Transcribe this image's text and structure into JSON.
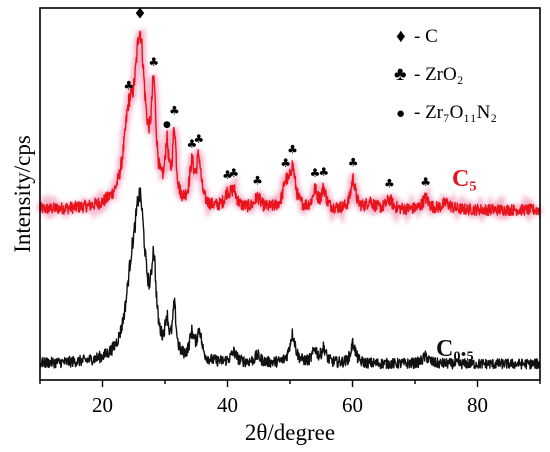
{
  "chart_data": {
    "type": "line",
    "xlabel": "2θ/degree",
    "ylabel": "Intensity/cps",
    "xlim": [
      10,
      90
    ],
    "x_ticks": [
      20,
      40,
      60,
      80
    ],
    "y_ticks_shown": false,
    "grid": false,
    "legend": {
      "placement": "top-right",
      "entries": [
        {
          "marker": "♦",
          "label": "- C"
        },
        {
          "marker": "♣",
          "label": "- ZrO₂"
        },
        {
          "marker": "●",
          "label": "- Zr₇O₁₁N₂"
        }
      ]
    },
    "series": [
      {
        "name": "C₅",
        "color": "#e8141c",
        "peaks": [
          {
            "x": 24.2,
            "h": 0.44,
            "w": 1.0
          },
          {
            "x": 26.0,
            "h": 1.0,
            "w": 1.0
          },
          {
            "x": 28.2,
            "h": 0.62,
            "w": 0.45
          },
          {
            "x": 30.3,
            "h": 0.32,
            "w": 0.35
          },
          {
            "x": 31.5,
            "h": 0.44,
            "w": 0.35
          },
          {
            "x": 34.3,
            "h": 0.24,
            "w": 0.45
          },
          {
            "x": 35.4,
            "h": 0.29,
            "w": 0.45
          },
          {
            "x": 40.0,
            "h": 0.08,
            "w": 0.55
          },
          {
            "x": 41.0,
            "h": 0.1,
            "w": 0.55
          },
          {
            "x": 44.8,
            "h": 0.07,
            "w": 0.55
          },
          {
            "x": 49.3,
            "h": 0.14,
            "w": 0.5
          },
          {
            "x": 50.4,
            "h": 0.25,
            "w": 0.55
          },
          {
            "x": 54.0,
            "h": 0.11,
            "w": 0.45
          },
          {
            "x": 55.4,
            "h": 0.12,
            "w": 0.45
          },
          {
            "x": 60.1,
            "h": 0.19,
            "w": 0.45
          },
          {
            "x": 62.8,
            "h": 0.05,
            "w": 0.6
          },
          {
            "x": 65.9,
            "h": 0.06,
            "w": 0.6
          },
          {
            "x": 71.7,
            "h": 0.07,
            "w": 0.6
          },
          {
            "x": 75.0,
            "h": 0.04,
            "w": 0.8
          }
        ],
        "label": "C₅"
      },
      {
        "name": "C₀.₅",
        "color": "#111111",
        "peaks": [
          {
            "x": 24.6,
            "h": 0.38,
            "w": 1.1
          },
          {
            "x": 26.0,
            "h": 1.0,
            "w": 1.1
          },
          {
            "x": 28.2,
            "h": 0.55,
            "w": 0.45
          },
          {
            "x": 30.3,
            "h": 0.22,
            "w": 0.35
          },
          {
            "x": 31.5,
            "h": 0.33,
            "w": 0.35
          },
          {
            "x": 34.3,
            "h": 0.17,
            "w": 0.45
          },
          {
            "x": 35.5,
            "h": 0.2,
            "w": 0.45
          },
          {
            "x": 41.0,
            "h": 0.07,
            "w": 0.55
          },
          {
            "x": 44.8,
            "h": 0.05,
            "w": 0.55
          },
          {
            "x": 50.4,
            "h": 0.2,
            "w": 0.55
          },
          {
            "x": 54.0,
            "h": 0.09,
            "w": 0.45
          },
          {
            "x": 55.4,
            "h": 0.1,
            "w": 0.45
          },
          {
            "x": 60.1,
            "h": 0.14,
            "w": 0.45
          },
          {
            "x": 71.7,
            "h": 0.05,
            "w": 0.6
          }
        ],
        "label": "C₀.₅"
      }
    ],
    "peak_markers": [
      {
        "series": 0,
        "x": 26.0,
        "symbol": "♦"
      },
      {
        "series": 0,
        "x": 24.2,
        "symbol": "♣"
      },
      {
        "series": 0,
        "x": 28.2,
        "symbol": "♣"
      },
      {
        "series": 0,
        "x": 30.3,
        "symbol": "●"
      },
      {
        "series": 0,
        "x": 31.5,
        "symbol": "♣"
      },
      {
        "series": 0,
        "x": 34.3,
        "symbol": "♣"
      },
      {
        "series": 0,
        "x": 35.4,
        "symbol": "♣"
      },
      {
        "series": 0,
        "x": 40.0,
        "symbol": "♣"
      },
      {
        "series": 0,
        "x": 41.0,
        "symbol": "♣"
      },
      {
        "series": 0,
        "x": 44.8,
        "symbol": "♣"
      },
      {
        "series": 0,
        "x": 49.3,
        "symbol": "♣"
      },
      {
        "series": 0,
        "x": 50.4,
        "symbol": "♣"
      },
      {
        "series": 0,
        "x": 54.0,
        "symbol": "♣"
      },
      {
        "series": 0,
        "x": 55.4,
        "symbol": "♣"
      },
      {
        "series": 0,
        "x": 60.1,
        "symbol": "♣"
      },
      {
        "series": 0,
        "x": 65.9,
        "symbol": "♣"
      },
      {
        "series": 0,
        "x": 71.7,
        "symbol": "♣"
      }
    ]
  }
}
